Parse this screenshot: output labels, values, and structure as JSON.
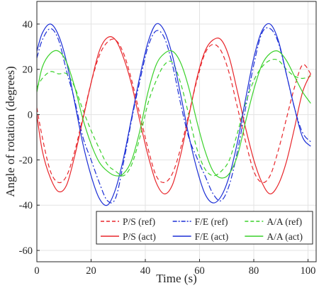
{
  "chart_data": {
    "type": "line",
    "xlabel": "Time (s)",
    "ylabel": "Angle of rotation (degrees)",
    "xlim": [
      0,
      103
    ],
    "ylim": [
      -65,
      50
    ],
    "xticks": [
      0,
      20,
      40,
      60,
      80,
      100
    ],
    "yticks": [
      -60,
      -40,
      -20,
      0,
      20,
      40
    ],
    "grid": true,
    "legend_position": "bottom-right",
    "legend_columns": 3,
    "colors": {
      "red": "#e8262b",
      "blue": "#1c2fd6",
      "green": "#3ad12a"
    },
    "series": [
      {
        "name": "P/S (ref)",
        "color": "#e8262b",
        "dash": "dashed",
        "x": [
          0,
          2,
          5,
          8,
          11,
          14,
          17,
          20,
          23,
          26,
          29,
          32,
          35,
          38,
          41,
          44,
          47,
          50,
          53,
          56,
          59,
          62,
          65,
          68,
          71,
          74,
          77,
          80,
          83,
          86,
          89,
          92,
          95,
          98,
          101
        ],
        "y": [
          3,
          -10,
          -25,
          -30,
          -27,
          -16,
          -1,
          14,
          26,
          32,
          33,
          27,
          15,
          0,
          -15,
          -27,
          -30,
          -26,
          -15,
          0,
          15,
          27,
          31,
          28,
          18,
          3,
          -12,
          -25,
          -30,
          -27,
          -16,
          -2,
          12,
          22,
          18
        ]
      },
      {
        "name": "F/E (ref)",
        "color": "#1c2fd6",
        "dash": "dashdot",
        "x": [
          0,
          2,
          5,
          8,
          11,
          14,
          17,
          20,
          23,
          26,
          29,
          32,
          35,
          38,
          41,
          44,
          47,
          50,
          53,
          56,
          59,
          62,
          65,
          68,
          71,
          74,
          77,
          80,
          83,
          86,
          89,
          92,
          95,
          98,
          101
        ],
        "y": [
          25,
          33,
          38,
          33,
          19,
          6,
          -10,
          -20,
          -30,
          -38,
          -37,
          -21,
          -2,
          15,
          30,
          37,
          34,
          22,
          5,
          -10,
          -19,
          -27,
          -35,
          -38,
          -31,
          -16,
          3,
          22,
          36,
          38,
          32,
          18,
          3,
          -8,
          -12
        ]
      },
      {
        "name": "A/A (ref)",
        "color": "#3ad12a",
        "dash": "dashed",
        "x": [
          0,
          2,
          5,
          8,
          11,
          14,
          17,
          20,
          23,
          26,
          29,
          32,
          35,
          38,
          41,
          44,
          47,
          50,
          53,
          56,
          59,
          62,
          65,
          68,
          71,
          74,
          77,
          80,
          83,
          86,
          89,
          92,
          95,
          98,
          101
        ],
        "y": [
          12,
          16,
          19,
          18,
          18,
          12,
          2,
          -7,
          -15,
          -22,
          -25,
          -27,
          -22,
          -10,
          5,
          15,
          22,
          23,
          14,
          0,
          -15,
          -24,
          -27,
          -25,
          -20,
          -8,
          5,
          15,
          21,
          24,
          24,
          20,
          17,
          16,
          17
        ]
      },
      {
        "name": "P/S (act)",
        "color": "#e8262b",
        "dash": "solid",
        "x": [
          0,
          2,
          5,
          8,
          11,
          14,
          17,
          20,
          23,
          26,
          29,
          32,
          35,
          38,
          41,
          44,
          47,
          50,
          53,
          56,
          59,
          62,
          65,
          68,
          71,
          74,
          77,
          80,
          83,
          86,
          89,
          92,
          95,
          98,
          101
        ],
        "y": [
          0,
          -16,
          -28,
          -34,
          -31,
          -18,
          -2,
          14,
          28,
          34,
          33,
          25,
          13,
          -3,
          -18,
          -30,
          -35,
          -31,
          -18,
          -1,
          16,
          28,
          33,
          33,
          25,
          10,
          -6,
          -20,
          -30,
          -35,
          -31,
          -21,
          -6,
          10,
          18
        ]
      },
      {
        "name": "F/E (act)",
        "color": "#1c2fd6",
        "dash": "solid",
        "x": [
          0,
          2,
          5,
          8,
          11,
          14,
          17,
          20,
          23,
          26,
          29,
          32,
          35,
          38,
          41,
          44,
          47,
          50,
          53,
          56,
          59,
          62,
          65,
          68,
          71,
          74,
          77,
          80,
          83,
          86,
          89,
          92,
          95,
          98,
          101
        ],
        "y": [
          28,
          36,
          40,
          35,
          23,
          5,
          -13,
          -27,
          -37,
          -40,
          -33,
          -19,
          -1,
          17,
          32,
          40,
          37,
          26,
          9,
          -9,
          -24,
          -35,
          -39,
          -36,
          -27,
          -12,
          7,
          25,
          37,
          40,
          33,
          18,
          3,
          -10,
          -14
        ]
      },
      {
        "name": "A/A (act)",
        "color": "#3ad12a",
        "dash": "solid",
        "x": [
          0,
          2,
          5,
          8,
          11,
          14,
          17,
          20,
          23,
          26,
          29,
          32,
          35,
          38,
          41,
          44,
          47,
          50,
          53,
          56,
          59,
          62,
          65,
          68,
          71,
          74,
          77,
          80,
          83,
          86,
          89,
          92,
          95,
          98,
          101
        ],
        "y": [
          10,
          21,
          27,
          28,
          23,
          12,
          -2,
          -13,
          -21,
          -25,
          -27,
          -26,
          -20,
          -7,
          10,
          22,
          27,
          28,
          23,
          12,
          -3,
          -16,
          -25,
          -28,
          -26,
          -18,
          -3,
          11,
          22,
          27,
          28,
          24,
          17,
          10,
          5
        ]
      }
    ]
  }
}
